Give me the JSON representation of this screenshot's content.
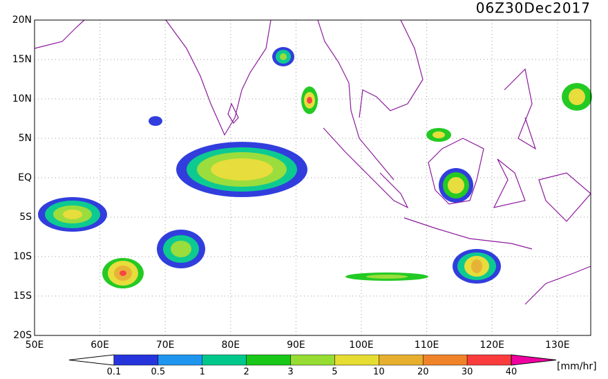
{
  "title": "06Z30Dec2017",
  "lat_labels": [
    "20N",
    "15N",
    "10N",
    "5N",
    "EQ",
    "5S",
    "10S",
    "15S",
    "20S"
  ],
  "lon_labels": [
    "50E",
    "60E",
    "70E",
    "80E",
    "90E",
    "100E",
    "110E",
    "120E",
    "130E"
  ],
  "colorbar": {
    "levels": [
      "0.1",
      "0.5",
      "1",
      "2",
      "3",
      "5",
      "10",
      "20",
      "30",
      "40"
    ],
    "colors": [
      "#ffffff",
      "#2634dc",
      "#1e96f0",
      "#00c88c",
      "#19c819",
      "#96dc32",
      "#e6dc32",
      "#e6af2d",
      "#f08228",
      "#fa3c3c",
      "#f000a0"
    ],
    "unit": "[mm/hr]"
  }
}
